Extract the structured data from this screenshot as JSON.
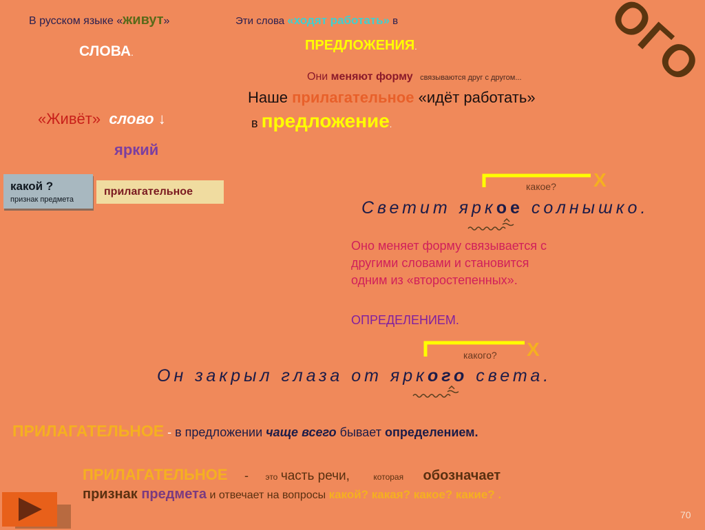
{
  "colors": {
    "background": "#f0895a",
    "yellow": "#ffff00",
    "orange": "#f5b020",
    "navy": "#1c1c48",
    "pink": "#d0205a",
    "purple": "#7b3fa0"
  },
  "top_left": {
    "prefix": "В русском языке «",
    "emph": "живут",
    "suffix": "»",
    "line2": "СЛОВА",
    "dot": "."
  },
  "top_right": {
    "prefix": "Эти слова ",
    "emph": "«ходят работать»",
    "suffix": " в",
    "line2": "ПРЕДЛОЖЕНИЯ",
    "dot": "."
  },
  "overlay": {
    "they": "Они ",
    "they_bold": "меняют форму",
    "small": "связываются друг с другом..."
  },
  "our": {
    "prefix": "Наше ",
    "adj": "прилагательное",
    "suffix": "«идёт работать»",
    "v": "в ",
    "sentence": "предложение",
    "dot": "."
  },
  "lives": {
    "quote": "«Живёт»",
    "word": "слово",
    "arrow": "↓",
    "example": "яркий"
  },
  "box_question": {
    "title": "какой ?",
    "subtitle": "признак предмета"
  },
  "box_answer": {
    "label": "прилагательное"
  },
  "stamp": "ОГО",
  "sentence1": {
    "question": "какое?",
    "before": "Светит ярк",
    "ending": "ое",
    "after": " солнышко.",
    "x_mark": "X"
  },
  "explanation": {
    "lines": [
      "Оно меняет форму  связывается с",
      "другими словами и становится",
      "одним из «второстепенных»."
    ],
    "result": "ОПРЕДЕЛЕНИЕМ."
  },
  "sentence2": {
    "question": "какого?",
    "before": "Он закрыл глаза от ярк",
    "ending": "ого",
    "after": " света.",
    "x_mark": "X"
  },
  "rule1": {
    "term": "ПРИЛАГАТЕЛЬНОЕ",
    "dash": " - ",
    "p1": "в предложении ",
    "p2": "чаще всего",
    "p3": " бывает ",
    "p4": "определением."
  },
  "rule2": {
    "term": "ПРИЛАГАТЕЛЬНОЕ",
    "dash": "-",
    "eto": "это",
    "part": "часть речи,",
    "which": "которая",
    "means": "обозначает",
    "sign": "признак ",
    "object": "предмета",
    "answers": " и отвечает  на вопросы ",
    "questions": "какой?  какая? какое?  какие? ."
  },
  "page_number": "70"
}
